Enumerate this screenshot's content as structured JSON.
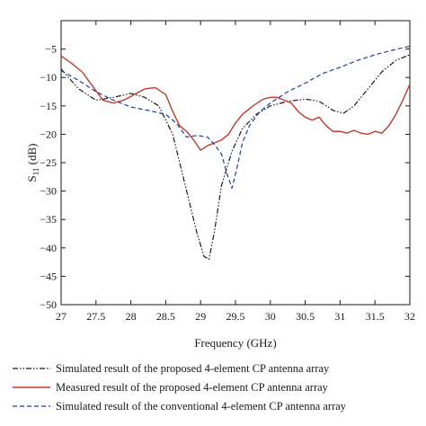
{
  "chart_data": {
    "type": "line",
    "xlabel": "Frequency (GHz)",
    "ylabel": {
      "main": "S",
      "sub": "11",
      "unit": " (dB)"
    },
    "xlim": [
      27,
      32
    ],
    "ylim": [
      -50,
      0
    ],
    "x_ticks": [
      27,
      27.5,
      28,
      28.5,
      29,
      29.5,
      30,
      30.5,
      31,
      31.5,
      32
    ],
    "x_tick_labels": [
      "27",
      "27.5",
      "28",
      "28.5",
      "29",
      "29.5",
      "30",
      "30.5",
      "31",
      "31.5",
      "32"
    ],
    "y_ticks": [
      0,
      -5,
      -10,
      -15,
      -20,
      -25,
      -30,
      -35,
      -40,
      -45,
      -50
    ],
    "y_tick_labels": [
      "",
      "−5",
      "−10",
      "−15",
      "−20",
      "−25",
      "−30",
      "−35",
      "−40",
      "−45",
      "−50"
    ],
    "grid": false,
    "legend_position": "below",
    "series": [
      {
        "name": "Simulated result of the proposed 4-element CP antenna array",
        "color": "#1a1a1a",
        "style": "dash-dot-dot",
        "x": [
          27,
          27.25,
          27.5,
          27.75,
          28,
          28.2,
          28.4,
          28.6,
          28.8,
          28.95,
          29.05,
          29.12,
          29.2,
          29.3,
          29.45,
          29.6,
          29.8,
          30,
          30.25,
          30.5,
          30.7,
          30.9,
          31.05,
          31.2,
          31.4,
          31.6,
          31.8,
          32
        ],
        "y": [
          -8.5,
          -12.0,
          -14.0,
          -13.5,
          -12.8,
          -13.5,
          -15.0,
          -20.0,
          -30.0,
          -37.5,
          -41.5,
          -42.0,
          -37.0,
          -29.0,
          -23.0,
          -19.0,
          -16.5,
          -15.0,
          -14.2,
          -13.8,
          -14.2,
          -15.8,
          -16.3,
          -15.0,
          -12.0,
          -9.0,
          -7.0,
          -6.0
        ]
      },
      {
        "name": "Measured result of the proposed 4-element CP antenna array",
        "color": "#c0392b",
        "style": "solid",
        "x": [
          27,
          27.15,
          27.3,
          27.45,
          27.6,
          27.75,
          27.9,
          28.05,
          28.2,
          28.35,
          28.5,
          28.6,
          28.7,
          28.8,
          28.9,
          29.0,
          29.1,
          29.2,
          29.3,
          29.4,
          29.5,
          29.6,
          29.75,
          29.9,
          30.0,
          30.1,
          30.2,
          30.3,
          30.4,
          30.5,
          30.6,
          30.7,
          30.8,
          30.9,
          31.0,
          31.1,
          31.2,
          31.3,
          31.4,
          31.5,
          31.6,
          31.7,
          31.8,
          31.9,
          32.0
        ],
        "y": [
          -6.2,
          -7.5,
          -9.0,
          -11.5,
          -14.0,
          -14.5,
          -14.0,
          -13.0,
          -12.0,
          -11.8,
          -13.0,
          -16.0,
          -18.5,
          -19.5,
          -21.0,
          -22.8,
          -22.0,
          -21.5,
          -21.0,
          -20.0,
          -18.0,
          -16.5,
          -15.0,
          -13.8,
          -13.5,
          -13.5,
          -14.0,
          -14.5,
          -16.0,
          -17.0,
          -17.5,
          -17.0,
          -18.5,
          -19.5,
          -19.5,
          -19.8,
          -19.3,
          -19.8,
          -20.0,
          -19.5,
          -19.8,
          -18.5,
          -16.5,
          -14.0,
          -11.2
        ]
      },
      {
        "name": "Simulated result of the conventional 4-element CP antenna array",
        "color": "#1f3fa6",
        "style": "dashed",
        "x": [
          27,
          27.25,
          27.5,
          27.75,
          28,
          28.25,
          28.5,
          28.65,
          28.8,
          28.95,
          29.1,
          29.2,
          29.3,
          29.38,
          29.45,
          29.52,
          29.6,
          29.7,
          29.85,
          30,
          30.25,
          30.5,
          30.75,
          31,
          31.25,
          31.5,
          31.75,
          32
        ],
        "y": [
          -8.8,
          -10.5,
          -12.5,
          -14.0,
          -15.2,
          -15.8,
          -16.5,
          -18.0,
          -20.5,
          -20.2,
          -20.5,
          -21.8,
          -23.5,
          -27.0,
          -29.5,
          -26.0,
          -21.5,
          -18.5,
          -16.0,
          -14.5,
          -12.5,
          -11.0,
          -9.3,
          -8.2,
          -7.0,
          -6.0,
          -5.2,
          -4.5
        ]
      }
    ]
  }
}
